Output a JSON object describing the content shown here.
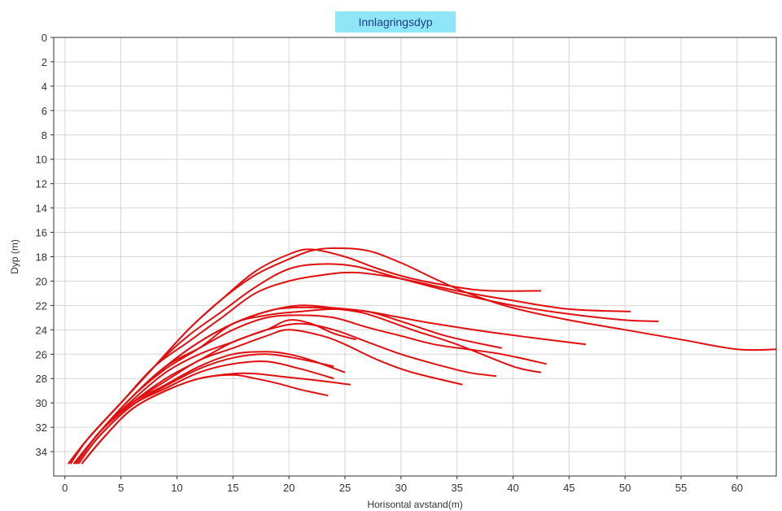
{
  "chart_data": {
    "type": "line",
    "title": "Innlagringsdyp",
    "xlabel": "Horisontal avstand(m)",
    "ylabel": "Dyp (m)",
    "xlim": [
      -1,
      63.5
    ],
    "ylim": [
      0,
      36
    ],
    "y_inverted": true,
    "grid": true,
    "legend": "none",
    "xticks": [
      0,
      5,
      10,
      15,
      20,
      25,
      30,
      35,
      40,
      45,
      50,
      55,
      60
    ],
    "yticks": [
      0,
      2,
      4,
      6,
      8,
      10,
      12,
      14,
      16,
      18,
      20,
      22,
      24,
      26,
      28,
      30,
      32,
      34
    ],
    "line_color": "#e01010",
    "series": [
      {
        "x": [
          0.3,
          2,
          5,
          8,
          11,
          14,
          17,
          20,
          22,
          24,
          27,
          30,
          33,
          36,
          40,
          45,
          50,
          55,
          60,
          63.5
        ],
        "y": [
          35,
          33,
          30,
          27,
          24,
          21.5,
          19.5,
          18.2,
          17.5,
          17.3,
          17.5,
          18.5,
          19.8,
          21,
          22.2,
          23.2,
          24,
          24.8,
          25.6,
          25.6
        ]
      },
      {
        "x": [
          0.3,
          2,
          5,
          8,
          11,
          14,
          17,
          20,
          22,
          25,
          28,
          31,
          35,
          38,
          42.5
        ],
        "y": [
          35,
          33,
          30,
          27,
          24,
          21.5,
          19.2,
          17.8,
          17.4,
          18,
          19,
          19.8,
          20.5,
          20.8,
          20.8
        ]
      },
      {
        "x": [
          0.5,
          2,
          5,
          8,
          11,
          14,
          17,
          20,
          23,
          26,
          30,
          35,
          40,
          45,
          50,
          53
        ],
        "y": [
          35,
          33,
          30,
          27,
          24.5,
          22.5,
          20.5,
          19,
          18.6,
          18.8,
          19.8,
          21,
          22,
          22.7,
          23.2,
          23.3
        ]
      },
      {
        "x": [
          0.5,
          2,
          5,
          8,
          11,
          14,
          17,
          20,
          23,
          26,
          30,
          35,
          40,
          45,
          50.5
        ],
        "y": [
          35,
          33,
          30,
          27,
          25,
          23,
          21,
          20,
          19.5,
          19.3,
          19.8,
          20.8,
          21.6,
          22.3,
          22.5
        ]
      },
      {
        "x": [
          0.8,
          3,
          6,
          9,
          12,
          15,
          18,
          21,
          24,
          27,
          30,
          33,
          36,
          39,
          43
        ],
        "y": [
          35,
          32.5,
          29.5,
          27,
          25.5,
          24,
          23,
          22.8,
          23,
          23.8,
          24.5,
          25.2,
          25.6,
          26,
          26.8
        ]
      },
      {
        "x": [
          0.8,
          3,
          6,
          9,
          12,
          15,
          18,
          21,
          24,
          27,
          30,
          34,
          39
        ],
        "y": [
          35,
          32.5,
          29.5,
          27.2,
          25.5,
          23.5,
          22.8,
          22.5,
          22.3,
          22.5,
          23.3,
          24.5,
          25.5
        ]
      },
      {
        "x": [
          0.8,
          3,
          6,
          9,
          12,
          15,
          18,
          20,
          23,
          26,
          28,
          31,
          35,
          40,
          42.5
        ],
        "y": [
          35,
          32.5,
          29.5,
          27,
          25,
          23.5,
          22.5,
          22.2,
          22.2,
          22.5,
          23,
          24,
          25.2,
          27,
          27.5
        ]
      },
      {
        "x": [
          0.8,
          3,
          6,
          9,
          12,
          15,
          18,
          21,
          24,
          27,
          30,
          33,
          38,
          43,
          46.5
        ],
        "y": [
          35,
          32.5,
          29.5,
          27,
          25,
          23.5,
          22.5,
          22,
          22.2,
          22.5,
          23,
          23.5,
          24.2,
          24.8,
          25.2
        ]
      },
      {
        "x": [
          1,
          3,
          6,
          9,
          12,
          15,
          18,
          21,
          24,
          27,
          30,
          33,
          36,
          38.5
        ],
        "y": [
          35,
          32.5,
          29.8,
          27.5,
          26,
          25,
          24,
          23.5,
          24,
          25,
          26,
          26.8,
          27.5,
          27.8
        ]
      },
      {
        "x": [
          1,
          3,
          6,
          9,
          12,
          15,
          18,
          20,
          22,
          24,
          26
        ],
        "y": [
          35,
          32.5,
          30,
          28,
          26.5,
          25,
          24,
          23.2,
          23.5,
          24.3,
          24.8
        ]
      },
      {
        "x": [
          1,
          3,
          6,
          9,
          12,
          15,
          18,
          20,
          23,
          25,
          28,
          31,
          35.5
        ],
        "y": [
          35,
          32.5,
          30,
          28.2,
          26.5,
          25.5,
          24.5,
          24,
          24.5,
          25.2,
          26.5,
          27.5,
          28.5
        ]
      },
      {
        "x": [
          1,
          3,
          6,
          9,
          12,
          15,
          18,
          20,
          22,
          25
        ],
        "y": [
          35,
          32.5,
          30,
          28.5,
          27,
          26,
          25.8,
          26,
          26.5,
          27.5
        ]
      },
      {
        "x": [
          1.2,
          3,
          6,
          9,
          12,
          15,
          18,
          21,
          24
        ],
        "y": [
          35,
          32.8,
          30.2,
          28.8,
          27.5,
          26.8,
          26.6,
          27.2,
          28
        ]
      },
      {
        "x": [
          1.2,
          3,
          6,
          9,
          12,
          15,
          18,
          21,
          24
        ],
        "y": [
          35,
          32.8,
          30.2,
          28.6,
          27.2,
          26.3,
          26,
          26.4,
          27
        ]
      },
      {
        "x": [
          1.5,
          3.5,
          6,
          9,
          12,
          15,
          17,
          19,
          21,
          23,
          25.5
        ],
        "y": [
          35,
          32.8,
          30.5,
          29,
          28,
          27.6,
          27.6,
          27.8,
          28,
          28.2,
          28.5
        ]
      },
      {
        "x": [
          1.5,
          3.5,
          6,
          9,
          12,
          15,
          17,
          19,
          21,
          23.5
        ],
        "y": [
          35,
          32.8,
          30.5,
          29,
          28,
          27.7,
          28,
          28.4,
          28.9,
          29.4
        ]
      }
    ]
  }
}
